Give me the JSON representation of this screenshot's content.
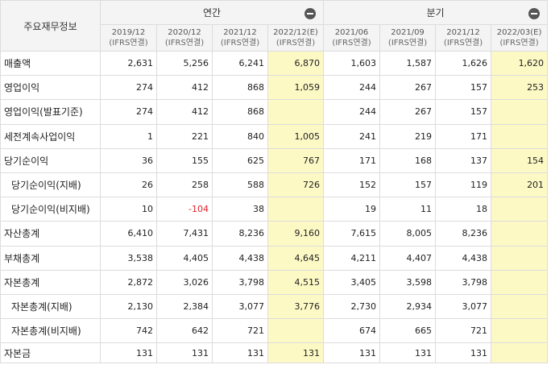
{
  "header": {
    "corner": "주요재무정보",
    "annual_group": "연간",
    "quarter_group": "분기",
    "annual_cols": [
      {
        "date": "2019/12",
        "basis": "(IFRS연결)"
      },
      {
        "date": "2020/12",
        "basis": "(IFRS연결)"
      },
      {
        "date": "2021/12",
        "basis": "(IFRS연결)"
      },
      {
        "date": "2022/12(E)",
        "basis": "(IFRS연결)"
      }
    ],
    "quarter_cols": [
      {
        "date": "2021/06",
        "basis": "(IFRS연결)"
      },
      {
        "date": "2021/09",
        "basis": "(IFRS연결)"
      },
      {
        "date": "2021/12",
        "basis": "(IFRS연결)"
      },
      {
        "date": "2022/03(E)",
        "basis": "(IFRS연결)"
      }
    ]
  },
  "rows": [
    {
      "label": "매출액",
      "v": [
        "2,631",
        "5,256",
        "6,241",
        "6,870",
        "1,603",
        "1,587",
        "1,626",
        "1,620"
      ]
    },
    {
      "label": "영업이익",
      "v": [
        "274",
        "412",
        "868",
        "1,059",
        "244",
        "267",
        "157",
        "253"
      ]
    },
    {
      "label": "영업이익(발표기준)",
      "v": [
        "274",
        "412",
        "868",
        "",
        "244",
        "267",
        "157",
        ""
      ]
    },
    {
      "label": "세전계속사업이익",
      "v": [
        "1",
        "221",
        "840",
        "1,005",
        "241",
        "219",
        "171",
        ""
      ]
    },
    {
      "label": "당기순이익",
      "v": [
        "36",
        "155",
        "625",
        "767",
        "171",
        "168",
        "137",
        "154"
      ]
    },
    {
      "label": "당기순이익(지배)",
      "v": [
        "26",
        "258",
        "588",
        "726",
        "152",
        "157",
        "119",
        "201"
      ]
    },
    {
      "label": "당기순이익(비지배)",
      "v": [
        "10",
        "-104",
        "38",
        "",
        "19",
        "11",
        "18",
        ""
      ]
    },
    {
      "label": "자산총계",
      "v": [
        "6,410",
        "7,431",
        "8,236",
        "9,160",
        "7,615",
        "8,005",
        "8,236",
        ""
      ]
    },
    {
      "label": "부채총계",
      "v": [
        "3,538",
        "4,405",
        "4,438",
        "4,645",
        "4,211",
        "4,407",
        "4,438",
        ""
      ]
    },
    {
      "label": "자본총계",
      "v": [
        "2,872",
        "3,026",
        "3,798",
        "4,515",
        "3,405",
        "3,598",
        "3,798",
        ""
      ]
    },
    {
      "label": "자본총계(지배)",
      "v": [
        "2,130",
        "2,384",
        "3,077",
        "3,776",
        "2,730",
        "2,934",
        "3,077",
        ""
      ]
    },
    {
      "label": "자본총계(비지배)",
      "v": [
        "742",
        "642",
        "721",
        "",
        "674",
        "665",
        "721",
        ""
      ]
    },
    {
      "label": "자본금",
      "v": [
        "131",
        "131",
        "131",
        "131",
        "131",
        "131",
        "131",
        ""
      ]
    }
  ],
  "colors": {
    "estimate_bg": "#fdf9c5",
    "negative_text": "#e0202a",
    "header_bg": "#f4f4f4",
    "border": "#dcdcdc"
  }
}
